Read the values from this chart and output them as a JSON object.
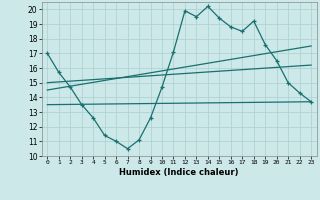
{
  "xlabel": "Humidex (Indice chaleur)",
  "xlim": [
    -0.5,
    23.5
  ],
  "ylim": [
    10,
    20.5
  ],
  "yticks": [
    10,
    11,
    12,
    13,
    14,
    15,
    16,
    17,
    18,
    19,
    20
  ],
  "xticks": [
    0,
    1,
    2,
    3,
    4,
    5,
    6,
    7,
    8,
    9,
    10,
    11,
    12,
    13,
    14,
    15,
    16,
    17,
    18,
    19,
    20,
    21,
    22,
    23
  ],
  "bg_color": "#cce8e8",
  "grid_color": "#aacfcf",
  "line_color": "#1a7070",
  "line1_x": [
    0,
    1,
    2,
    3,
    4,
    5,
    6,
    7,
    8,
    9,
    10,
    11,
    12,
    13,
    14,
    15,
    16,
    17,
    18,
    19,
    20,
    21,
    22,
    23
  ],
  "line1_y": [
    17.0,
    15.7,
    14.7,
    13.5,
    12.6,
    11.4,
    11.0,
    10.5,
    11.1,
    12.6,
    14.7,
    17.1,
    19.9,
    19.5,
    20.2,
    19.4,
    18.8,
    18.5,
    19.2,
    17.6,
    16.5,
    15.0,
    14.3,
    13.7
  ],
  "line2_x": [
    0,
    23
  ],
  "line2_y": [
    13.5,
    13.7
  ],
  "line3_x": [
    0,
    23
  ],
  "line3_y": [
    15.0,
    16.2
  ],
  "line4_x": [
    0,
    23
  ],
  "line4_y": [
    14.5,
    17.5
  ]
}
